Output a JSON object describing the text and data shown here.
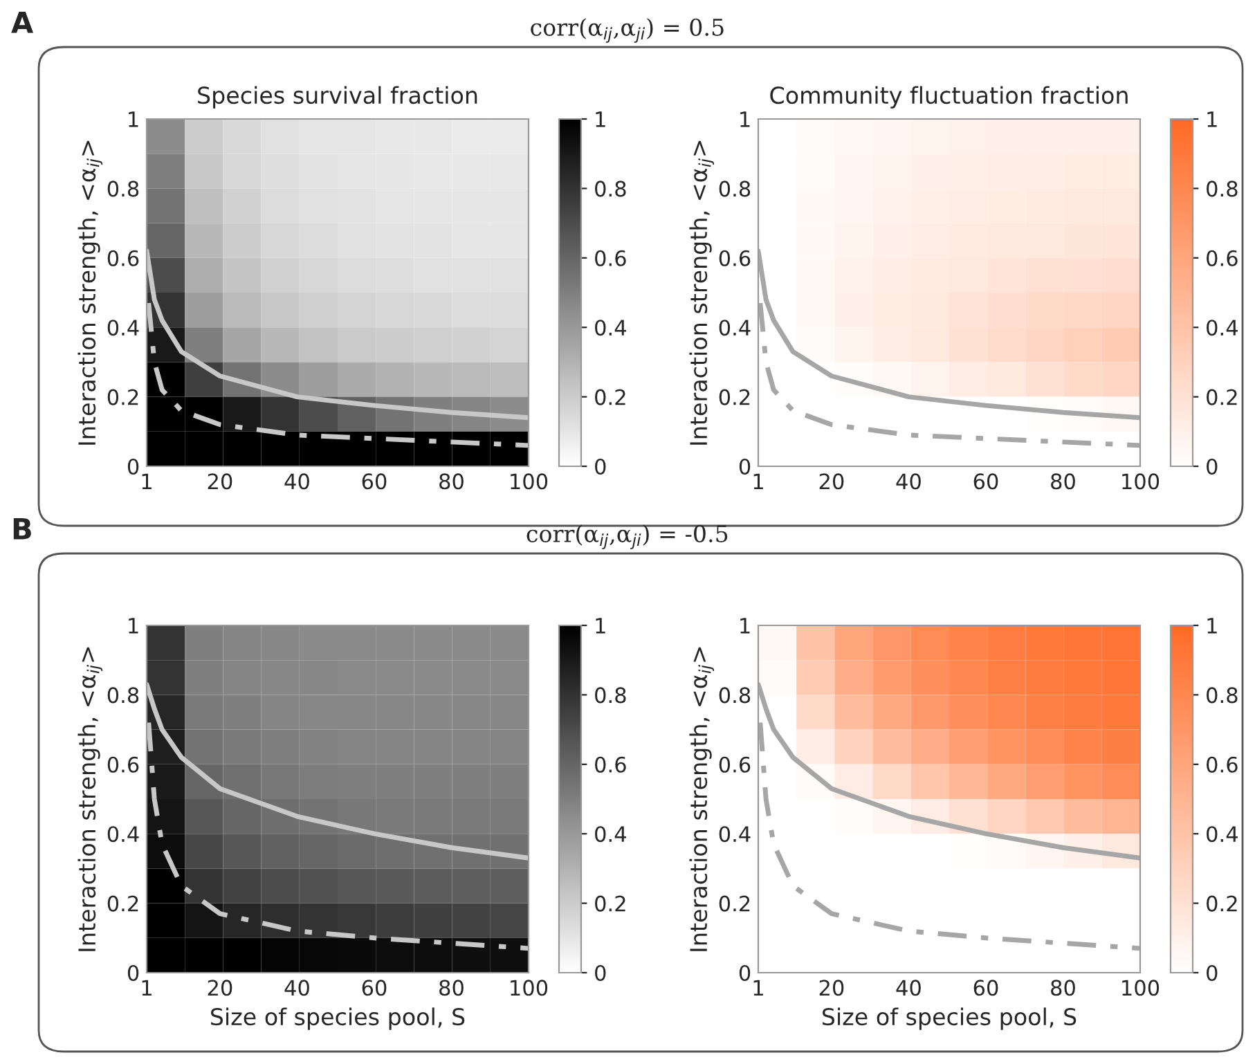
{
  "chart_data": [
    {
      "type": "heatmap",
      "title": "Species survival fraction",
      "ylabel": "Interaction strength, <α$_{ij}$>",
      "annotations": [
        "A",
        "corr(α$_{ij}$,α$_{ji}$) = 0.5"
      ],
      "x": [
        5.95,
        15.85,
        25.75,
        35.65,
        45.55,
        55.45,
        65.35,
        75.25,
        85.15,
        95.05
      ],
      "y": [
        0.95,
        0.85,
        0.75,
        0.65,
        0.55,
        0.45,
        0.35,
        0.25,
        0.15,
        0.05
      ],
      "xlim": [
        1,
        100
      ],
      "xticks": [
        1,
        20,
        40,
        60,
        80,
        100
      ],
      "ylim": [
        0,
        1
      ],
      "yticks": [
        0,
        0.2,
        0.4,
        0.6,
        0.8,
        1
      ],
      "colors": [
        "#ffffff",
        "#000000"
      ],
      "clim": [
        0,
        1
      ],
      "cticks": [
        0,
        0.2,
        0.4,
        0.6,
        0.8,
        1
      ],
      "cells": [
        [
          0.45,
          0.2,
          0.15,
          0.12,
          0.1,
          0.1,
          0.09,
          0.09,
          0.08,
          0.08
        ],
        [
          0.5,
          0.22,
          0.16,
          0.13,
          0.11,
          0.1,
          0.1,
          0.09,
          0.09,
          0.09
        ],
        [
          0.55,
          0.25,
          0.18,
          0.14,
          0.12,
          0.11,
          0.1,
          0.1,
          0.1,
          0.1
        ],
        [
          0.6,
          0.28,
          0.2,
          0.16,
          0.14,
          0.12,
          0.11,
          0.11,
          0.1,
          0.1
        ],
        [
          0.7,
          0.32,
          0.23,
          0.18,
          0.16,
          0.14,
          0.13,
          0.12,
          0.12,
          0.12
        ],
        [
          0.8,
          0.38,
          0.27,
          0.22,
          0.19,
          0.17,
          0.16,
          0.15,
          0.14,
          0.14
        ],
        [
          0.9,
          0.5,
          0.35,
          0.28,
          0.24,
          0.21,
          0.2,
          0.19,
          0.18,
          0.17
        ],
        [
          1,
          0.75,
          0.55,
          0.45,
          0.38,
          0.33,
          0.3,
          0.28,
          0.27,
          0.26
        ],
        [
          1,
          1,
          0.9,
          0.8,
          0.7,
          0.62,
          0.55,
          0.5,
          0.48,
          0.45
        ],
        [
          1,
          1,
          1,
          1,
          1,
          1,
          1,
          1,
          1,
          1
        ]
      ],
      "series": [
        {
          "type": "line",
          "color": "#c8c8c8",
          "line_style": "solid",
          "x": [
            1,
            3,
            5,
            10,
            20,
            40,
            60,
            80,
            100
          ],
          "values": [
            0.62,
            0.48,
            0.42,
            0.33,
            0.26,
            0.2,
            0.175,
            0.155,
            0.14
          ]
        },
        {
          "type": "line",
          "color": "#c8c8c8",
          "line_style": "dashed",
          "x": [
            1.5,
            3,
            5,
            10,
            20,
            40,
            60,
            80,
            100
          ],
          "values": [
            0.47,
            0.3,
            0.22,
            0.16,
            0.12,
            0.09,
            0.08,
            0.07,
            0.06
          ]
        }
      ]
    },
    {
      "type": "heatmap",
      "title": "Community fluctuation fraction",
      "ylabel": "Interaction strength, <α$_{ij}$>",
      "x": [
        5.95,
        15.85,
        25.75,
        35.65,
        45.55,
        55.45,
        65.35,
        75.25,
        85.15,
        95.05
      ],
      "y": [
        0.95,
        0.85,
        0.75,
        0.65,
        0.55,
        0.45,
        0.35,
        0.25,
        0.15,
        0.05
      ],
      "xlim": [
        1,
        100
      ],
      "xticks": [
        1,
        20,
        40,
        60,
        80,
        100
      ],
      "ylim": [
        0,
        1
      ],
      "yticks": [
        0,
        0.2,
        0.4,
        0.6,
        0.8,
        1
      ],
      "colors": [
        "#ffffff",
        "#ff6a26"
      ],
      "clim": [
        0,
        1
      ],
      "cticks": [
        0,
        0.2,
        0.4,
        0.6,
        0.8,
        1
      ],
      "cells": [
        [
          0,
          0.03,
          0.05,
          0.07,
          0.08,
          0.09,
          0.1,
          0.1,
          0.1,
          0.1
        ],
        [
          0,
          0.03,
          0.06,
          0.08,
          0.1,
          0.11,
          0.12,
          0.12,
          0.13,
          0.13
        ],
        [
          0,
          0.04,
          0.07,
          0.09,
          0.11,
          0.12,
          0.13,
          0.14,
          0.15,
          0.15
        ],
        [
          0,
          0.04,
          0.08,
          0.1,
          0.12,
          0.14,
          0.15,
          0.16,
          0.17,
          0.18
        ],
        [
          0,
          0.05,
          0.09,
          0.12,
          0.14,
          0.16,
          0.18,
          0.2,
          0.21,
          0.22
        ],
        [
          0,
          0.05,
          0.1,
          0.13,
          0.16,
          0.19,
          0.22,
          0.25,
          0.27,
          0.28
        ],
        [
          0,
          0.03,
          0.08,
          0.12,
          0.16,
          0.2,
          0.24,
          0.28,
          0.32,
          0.35
        ],
        [
          0,
          0,
          0.02,
          0.05,
          0.08,
          0.12,
          0.16,
          0.2,
          0.25,
          0.28
        ],
        [
          0,
          0,
          0,
          0,
          0,
          0,
          0,
          0.01,
          0.02,
          0.05
        ],
        [
          0,
          0,
          0,
          0,
          0,
          0,
          0,
          0,
          0,
          0
        ]
      ],
      "series": [
        {
          "type": "line",
          "color": "#a6a6a6",
          "line_style": "solid",
          "x": [
            1,
            3,
            5,
            10,
            20,
            40,
            60,
            80,
            100
          ],
          "values": [
            0.62,
            0.48,
            0.42,
            0.33,
            0.26,
            0.2,
            0.175,
            0.155,
            0.14
          ]
        },
        {
          "type": "line",
          "color": "#a6a6a6",
          "line_style": "dashed",
          "x": [
            1.5,
            3,
            5,
            10,
            20,
            40,
            60,
            80,
            100
          ],
          "values": [
            0.47,
            0.3,
            0.22,
            0.16,
            0.12,
            0.09,
            0.08,
            0.07,
            0.06
          ]
        }
      ]
    },
    {
      "type": "heatmap",
      "ylabel": "Interaction strength, <α$_{ij}$>",
      "xlabel": "Size of species pool, S",
      "annotations": [
        "B",
        "corr(α$_{ij}$,α$_{ji}$) = -0.5"
      ],
      "x": [
        5.95,
        15.85,
        25.75,
        35.65,
        45.55,
        55.45,
        65.35,
        75.25,
        85.15,
        95.05
      ],
      "y": [
        0.95,
        0.85,
        0.75,
        0.65,
        0.55,
        0.45,
        0.35,
        0.25,
        0.15,
        0.05
      ],
      "xlim": [
        1,
        100
      ],
      "xticks": [
        1,
        20,
        40,
        60,
        80,
        100
      ],
      "ylim": [
        0,
        1
      ],
      "yticks": [
        0,
        0.2,
        0.4,
        0.6,
        0.8,
        1
      ],
      "colors": [
        "#ffffff",
        "#000000"
      ],
      "clim": [
        0,
        1
      ],
      "cticks": [
        0,
        0.2,
        0.4,
        0.6,
        0.8,
        1
      ],
      "cells": [
        [
          0.8,
          0.5,
          0.48,
          0.47,
          0.46,
          0.46,
          0.46,
          0.46,
          0.46,
          0.46
        ],
        [
          0.8,
          0.5,
          0.48,
          0.47,
          0.47,
          0.46,
          0.46,
          0.46,
          0.46,
          0.46
        ],
        [
          0.85,
          0.52,
          0.5,
          0.48,
          0.47,
          0.47,
          0.47,
          0.47,
          0.47,
          0.47
        ],
        [
          0.88,
          0.55,
          0.52,
          0.5,
          0.49,
          0.48,
          0.48,
          0.48,
          0.48,
          0.48
        ],
        [
          0.9,
          0.6,
          0.56,
          0.53,
          0.51,
          0.5,
          0.5,
          0.5,
          0.5,
          0.5
        ],
        [
          0.92,
          0.66,
          0.6,
          0.57,
          0.55,
          0.53,
          0.52,
          0.52,
          0.52,
          0.52
        ],
        [
          0.95,
          0.72,
          0.66,
          0.62,
          0.6,
          0.58,
          0.57,
          0.56,
          0.56,
          0.56
        ],
        [
          1,
          0.8,
          0.74,
          0.7,
          0.68,
          0.66,
          0.65,
          0.64,
          0.63,
          0.63
        ],
        [
          1,
          0.92,
          0.85,
          0.82,
          0.8,
          0.78,
          0.76,
          0.75,
          0.74,
          0.73
        ],
        [
          1,
          1,
          1,
          0.98,
          0.97,
          0.96,
          0.95,
          0.95,
          0.94,
          0.94
        ]
      ],
      "series": [
        {
          "type": "line",
          "color": "#c8c8c8",
          "line_style": "solid",
          "x": [
            1,
            3,
            5,
            10,
            20,
            40,
            60,
            80,
            100
          ],
          "values": [
            0.83,
            0.76,
            0.7,
            0.62,
            0.53,
            0.45,
            0.4,
            0.36,
            0.33
          ]
        },
        {
          "type": "line",
          "color": "#c8c8c8",
          "line_style": "dashed",
          "x": [
            1.5,
            3,
            5,
            10,
            20,
            40,
            60,
            80,
            100
          ],
          "values": [
            0.72,
            0.5,
            0.37,
            0.25,
            0.17,
            0.12,
            0.1,
            0.085,
            0.07
          ]
        }
      ]
    },
    {
      "type": "heatmap",
      "ylabel": "Interaction strength, <α$_{ij}$>",
      "xlabel": "Size of species pool, S",
      "x": [
        5.95,
        15.85,
        25.75,
        35.65,
        45.55,
        55.45,
        65.35,
        75.25,
        85.15,
        95.05
      ],
      "y": [
        0.95,
        0.85,
        0.75,
        0.65,
        0.55,
        0.45,
        0.35,
        0.25,
        0.15,
        0.05
      ],
      "xlim": [
        1,
        100
      ],
      "xticks": [
        1,
        20,
        40,
        60,
        80,
        100
      ],
      "ylim": [
        0,
        1
      ],
      "yticks": [
        0,
        0.2,
        0.4,
        0.6,
        0.8,
        1
      ],
      "colors": [
        "#ffffff",
        "#ff6a26"
      ],
      "clim": [
        0,
        1
      ],
      "cticks": [
        0,
        0.2,
        0.4,
        0.6,
        0.8,
        1
      ],
      "cells": [
        [
          0.05,
          0.4,
          0.6,
          0.7,
          0.78,
          0.83,
          0.87,
          0.9,
          0.92,
          0.93
        ],
        [
          0.03,
          0.35,
          0.55,
          0.67,
          0.75,
          0.8,
          0.85,
          0.88,
          0.9,
          0.92
        ],
        [
          0,
          0.25,
          0.45,
          0.58,
          0.68,
          0.75,
          0.8,
          0.85,
          0.88,
          0.9
        ],
        [
          0,
          0.12,
          0.3,
          0.45,
          0.55,
          0.65,
          0.72,
          0.78,
          0.83,
          0.86
        ],
        [
          0,
          0.03,
          0.12,
          0.25,
          0.38,
          0.48,
          0.58,
          0.66,
          0.72,
          0.78
        ],
        [
          0,
          0,
          0.02,
          0.06,
          0.12,
          0.2,
          0.28,
          0.36,
          0.45,
          0.5
        ],
        [
          0,
          0,
          0,
          0,
          0,
          0.01,
          0.03,
          0.06,
          0.1,
          0.15
        ],
        [
          0,
          0,
          0,
          0,
          0,
          0,
          0,
          0,
          0,
          0
        ],
        [
          0,
          0,
          0,
          0,
          0,
          0,
          0,
          0,
          0,
          0
        ],
        [
          0,
          0,
          0,
          0,
          0,
          0,
          0,
          0,
          0,
          0
        ]
      ],
      "series": [
        {
          "type": "line",
          "color": "#a6a6a6",
          "line_style": "solid",
          "x": [
            1,
            3,
            5,
            10,
            20,
            40,
            60,
            80,
            100
          ],
          "values": [
            0.83,
            0.76,
            0.7,
            0.62,
            0.53,
            0.45,
            0.4,
            0.36,
            0.33
          ]
        },
        {
          "type": "line",
          "color": "#a6a6a6",
          "line_style": "dashed",
          "x": [
            1.5,
            3,
            5,
            10,
            20,
            40,
            60,
            80,
            100
          ],
          "values": [
            0.72,
            0.5,
            0.37,
            0.25,
            0.17,
            0.12,
            0.1,
            0.085,
            0.07
          ]
        }
      ]
    }
  ]
}
